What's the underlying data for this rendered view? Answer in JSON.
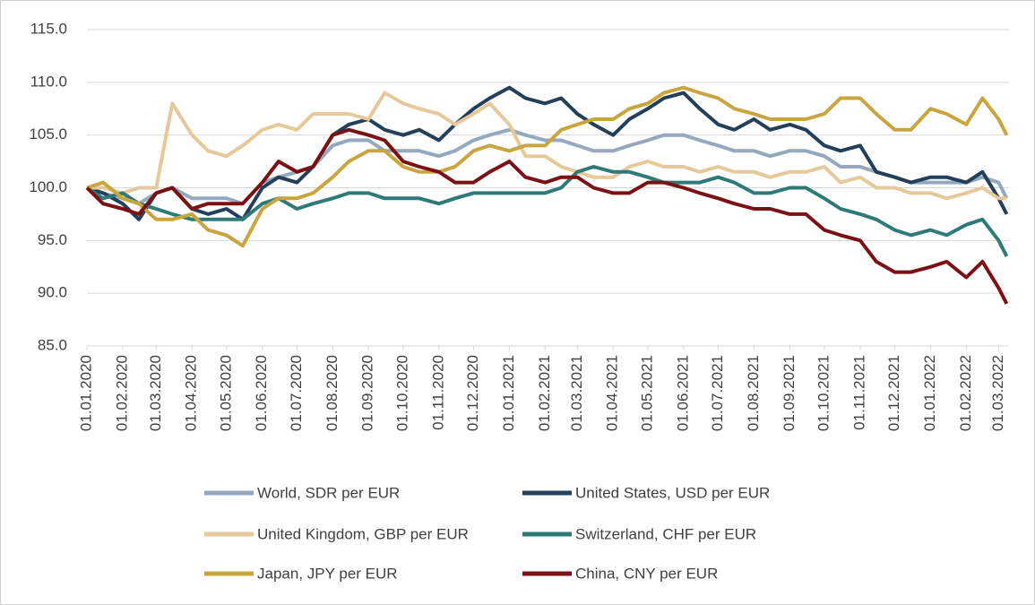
{
  "chart_data": {
    "type": "line",
    "x": [
      "01.01.2020",
      "15.01.2020",
      "01.02.2020",
      "15.02.2020",
      "01.03.2020",
      "15.03.2020",
      "01.04.2020",
      "15.04.2020",
      "01.05.2020",
      "15.05.2020",
      "01.06.2020",
      "15.06.2020",
      "01.07.2020",
      "15.07.2020",
      "01.08.2020",
      "15.08.2020",
      "01.09.2020",
      "15.09.2020",
      "01.10.2020",
      "15.10.2020",
      "01.11.2020",
      "15.11.2020",
      "01.12.2020",
      "15.12.2020",
      "01.01.2021",
      "15.01.2021",
      "01.02.2021",
      "15.02.2021",
      "01.03.2021",
      "15.03.2021",
      "01.04.2021",
      "15.04.2021",
      "01.05.2021",
      "15.05.2021",
      "01.06.2021",
      "15.06.2021",
      "01.07.2021",
      "15.07.2021",
      "01.08.2021",
      "15.08.2021",
      "01.09.2021",
      "15.09.2021",
      "01.10.2021",
      "15.10.2021",
      "01.11.2021",
      "15.11.2021",
      "01.12.2021",
      "15.12.2021",
      "01.01.2022",
      "15.01.2022",
      "01.02.2022",
      "15.02.2022",
      "01.03.2022",
      "08.03.2022"
    ],
    "xlim": [
      "01.01.2020",
      "10.03.2022"
    ],
    "xticks": [
      "01.01.2020",
      "01.02.2020",
      "01.03.2020",
      "01.04.2020",
      "01.05.2020",
      "01.06.2020",
      "01.07.2020",
      "01.08.2020",
      "01.09.2020",
      "01.10.2020",
      "01.11.2020",
      "01.12.2020",
      "01.01.2021",
      "01.02.2021",
      "01.03.2021",
      "01.04.2021",
      "01.05.2021",
      "01.06.2021",
      "01.07.2021",
      "01.08.2021",
      "01.09.2021",
      "01.10.2021",
      "01.11.2021",
      "01.12.2021",
      "01.01.2022",
      "01.02.2022",
      "01.03.2022"
    ],
    "ylim": [
      85,
      115
    ],
    "yticks": [
      {
        "value": 85,
        "label": "85.0"
      },
      {
        "value": 90,
        "label": "90.0"
      },
      {
        "value": 95,
        "label": "95.0"
      },
      {
        "value": 100,
        "label": "100.0"
      },
      {
        "value": 105,
        "label": "105.0"
      },
      {
        "value": 110,
        "label": "110.0"
      },
      {
        "value": 115,
        "label": "115.0"
      }
    ],
    "grid": true,
    "legend": "bottom",
    "series": [
      {
        "name": "World, SDR per EUR",
        "color": "#94a9bf",
        "values": [
          100,
          99.5,
          99,
          98.5,
          99.5,
          100,
          99,
          99,
          99,
          98.5,
          100.5,
          101,
          101.5,
          102,
          104,
          104.5,
          104.5,
          103.5,
          103.5,
          103.5,
          103,
          103.5,
          104.5,
          105,
          105.5,
          105,
          104.5,
          104.5,
          104,
          103.5,
          103.5,
          104,
          104.5,
          105,
          105,
          104.5,
          104,
          103.5,
          103.5,
          103,
          103.5,
          103.5,
          103,
          102,
          102,
          101.5,
          101,
          100.5,
          100.5,
          100.5,
          100.5,
          101,
          100.5,
          99
        ]
      },
      {
        "name": "United States, USD per EUR",
        "color": "#243f5a",
        "values": [
          100,
          99.5,
          98.5,
          97,
          99.5,
          100,
          98,
          97.5,
          98,
          97,
          100,
          101,
          100.5,
          102,
          105,
          106,
          106.5,
          105.5,
          105,
          105.5,
          104.5,
          106,
          107.5,
          108.5,
          109.5,
          108.5,
          108,
          108.5,
          107,
          106,
          105,
          106.5,
          107.5,
          108.5,
          109,
          107.5,
          106,
          105.5,
          106.5,
          105.5,
          106,
          105.5,
          104,
          103.5,
          104,
          101.5,
          101,
          100.5,
          101,
          101,
          100.5,
          101.5,
          99,
          97.5
        ]
      },
      {
        "name": "United Kingdom, GBP per EUR",
        "color": "#e6c99b",
        "values": [
          100,
          100,
          99.5,
          100,
          100,
          108,
          105,
          103.5,
          103,
          104,
          105.5,
          106,
          105.5,
          107,
          107,
          107,
          106.5,
          109,
          108,
          107.5,
          107,
          106,
          107,
          108,
          106,
          103,
          103,
          102,
          101.5,
          101,
          101,
          102,
          102.5,
          102,
          102,
          101.5,
          102,
          101.5,
          101.5,
          101,
          101.5,
          101.5,
          102,
          100.5,
          101,
          100,
          100,
          99.5,
          99.5,
          99,
          99.5,
          100,
          99,
          99
        ]
      },
      {
        "name": "Switzerland, CHF per EUR",
        "color": "#2e7a78",
        "values": [
          100,
          99,
          99.5,
          98.5,
          98,
          97.5,
          97,
          97,
          97,
          97,
          98.5,
          99,
          98,
          98.5,
          99,
          99.5,
          99.5,
          99,
          99,
          99,
          98.5,
          99,
          99.5,
          99.5,
          99.5,
          99.5,
          99.5,
          100,
          101.5,
          102,
          101.5,
          101.5,
          101,
          100.5,
          100.5,
          100.5,
          101,
          100.5,
          99.5,
          99.5,
          100,
          100,
          99,
          98,
          97.5,
          97,
          96,
          95.5,
          96,
          95.5,
          96.5,
          97,
          95,
          93.5
        ]
      },
      {
        "name": "Japan, JPY per EUR",
        "color": "#c9a540",
        "values": [
          100,
          100.5,
          99,
          98.5,
          97,
          97,
          97.5,
          96,
          95.5,
          94.5,
          98,
          99,
          99,
          99.5,
          101,
          102.5,
          103.5,
          103.5,
          102,
          101.5,
          101.5,
          102,
          103.5,
          104,
          103.5,
          104,
          104,
          105.5,
          106,
          106.5,
          106.5,
          107.5,
          108,
          109,
          109.5,
          109,
          108.5,
          107.5,
          107,
          106.5,
          106.5,
          106.5,
          107,
          108.5,
          108.5,
          107,
          105.5,
          105.5,
          107.5,
          107,
          106,
          108.5,
          106.5,
          105
        ]
      },
      {
        "name": "China, CNY per EUR",
        "color": "#7b1114",
        "values": [
          100,
          98.5,
          98,
          97.5,
          99.5,
          100,
          98,
          98.5,
          98.5,
          98.5,
          100.5,
          102.5,
          101.5,
          102,
          105,
          105.5,
          105,
          104.5,
          102.5,
          102,
          101.5,
          100.5,
          100.5,
          101.5,
          102.5,
          101,
          100.5,
          101,
          101,
          100,
          99.5,
          99.5,
          100.5,
          100.5,
          100,
          99.5,
          99,
          98.5,
          98,
          98,
          97.5,
          97.5,
          96,
          95.5,
          95,
          93,
          92,
          92,
          92.5,
          93,
          91.5,
          93,
          90.5,
          89
        ]
      }
    ]
  }
}
